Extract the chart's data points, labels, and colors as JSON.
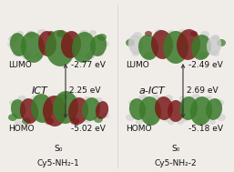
{
  "background_color": "#f0ede8",
  "left_panel": {
    "lumo_energy": "-2.77 eV",
    "homo_energy": "-5.02 eV",
    "gap_energy": "2.25 eV",
    "gap_label": "ICT",
    "lumo_label": "LUMO",
    "homo_label": "HOMO",
    "state_label": "S₀",
    "compound_label": "Cy5-NH₂-1"
  },
  "right_panel": {
    "lumo_energy": "-2.49 eV",
    "homo_energy": "-5.18 eV",
    "gap_energy": "2.69 eV",
    "gap_label": "a-ICT",
    "lumo_label": "LUMO",
    "homo_label": "HOMO",
    "state_label": "S₀",
    "compound_label": "Cy5-NH₂-2"
  },
  "figsize": [
    2.57,
    1.89
  ],
  "dpi": 100,
  "text_color": "#111111",
  "arrow_color": "#333333",
  "green": "#3a7a2a",
  "dark_red": "#7a1a1a",
  "gray": "#aaaaaa",
  "light_gray": "#cccccc"
}
